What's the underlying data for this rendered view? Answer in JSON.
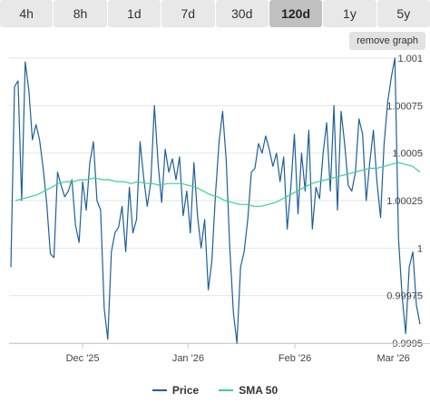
{
  "tabs": [
    {
      "label": "4h",
      "active": false
    },
    {
      "label": "8h",
      "active": false
    },
    {
      "label": "1d",
      "active": false
    },
    {
      "label": "7d",
      "active": false
    },
    {
      "label": "30d",
      "active": false
    },
    {
      "label": "120d",
      "active": true
    },
    {
      "label": "1y",
      "active": false
    },
    {
      "label": "5y",
      "active": false
    }
  ],
  "remove_graph_label": "remove graph",
  "colors": {
    "price": "#1f5f99",
    "sma": "#3ecf8e",
    "grid": "#e6e6e6",
    "axis_text": "#444444"
  },
  "chart_data": {
    "type": "line",
    "x_tick_labels": [
      "Dec '25",
      "Jan '26",
      "Feb '26",
      "Mar '26"
    ],
    "y_tick_labels": [
      "0.9995",
      "0.99975",
      "1",
      "1.00025",
      "1.0005",
      "1.00075",
      "1.001"
    ],
    "ylim": [
      0.9995,
      1.001
    ],
    "legend_position": "bottom",
    "series": [
      {
        "name": "Price",
        "values": [
          0.9999,
          1.00085,
          1.00088,
          1.00025,
          1.00098,
          1.00083,
          1.00057,
          1.00065,
          1.00057,
          1.00042,
          1.00023,
          0.99997,
          0.99995,
          1.0004,
          1.00033,
          1.00027,
          1.0003,
          1.00036,
          1.00012,
          1.00003,
          1.00035,
          1.0002,
          1.00045,
          1.00056,
          1.00025,
          1.0002,
          0.99968,
          0.99952,
          0.99998,
          1.00008,
          1.00011,
          1.00022,
          0.99998,
          1.00032,
          1.00008,
          1.00015,
          1.00056,
          1.00037,
          1.00022,
          1.00035,
          1.00075,
          1.00045,
          1.00024,
          1.00052,
          1.0004,
          1.00047,
          1.00036,
          1.00048,
          1.00017,
          1.0003,
          1.00008,
          1.00045,
          1.00017,
          1.0,
          1.00015,
          0.99978,
          0.99993,
          1.00028,
          1.00056,
          1.00072,
          1.00046,
          1.0,
          0.99966,
          0.9995,
          0.9999,
          0.99998,
          1.00015,
          1.0004,
          1.00042,
          1.00055,
          1.0005,
          1.00059,
          1.00052,
          1.00043,
          1.0005,
          1.00035,
          1.00048,
          1.0001,
          1.00032,
          1.0006,
          1.00018,
          1.0005,
          1.0003,
          1.00062,
          1.0001,
          1.00032,
          1.00026,
          1.0005,
          1.00066,
          1.0003,
          1.00075,
          1.0002,
          1.00072,
          1.00055,
          1.00033,
          1.0003,
          1.0004,
          1.00068,
          1.0006,
          1.00025,
          1.00045,
          1.00062,
          1.00035,
          1.00016,
          1.00055,
          1.00077,
          1.0009,
          1.001,
          1.00005,
          0.99975,
          0.99955,
          0.9999,
          0.99998,
          0.9997,
          0.9996
        ]
      },
      {
        "name": "SMA 50",
        "values": [
          1.00025,
          1.00026,
          1.00027,
          1.00028,
          1.0003,
          1.00032,
          1.00034,
          1.00035,
          1.00035,
          1.00036,
          1.00036,
          1.00037,
          1.00036,
          1.00036,
          1.00035,
          1.00035,
          1.00034,
          1.00035,
          1.00034,
          1.00034,
          1.00033,
          1.00034,
          1.00034,
          1.00034,
          1.00033,
          1.00032,
          1.0003,
          1.00028,
          1.00027,
          1.00025,
          1.00024,
          1.00023,
          1.00023,
          1.00022,
          1.00022,
          1.00023,
          1.00024,
          1.00026,
          1.00028,
          1.0003,
          1.00032,
          1.00034,
          1.00035,
          1.00036,
          1.00037,
          1.00038,
          1.00039,
          1.0004,
          1.00041,
          1.00042,
          1.00042,
          1.00043,
          1.00044,
          1.00045,
          1.00044,
          1.00043,
          1.0004
        ]
      }
    ]
  }
}
